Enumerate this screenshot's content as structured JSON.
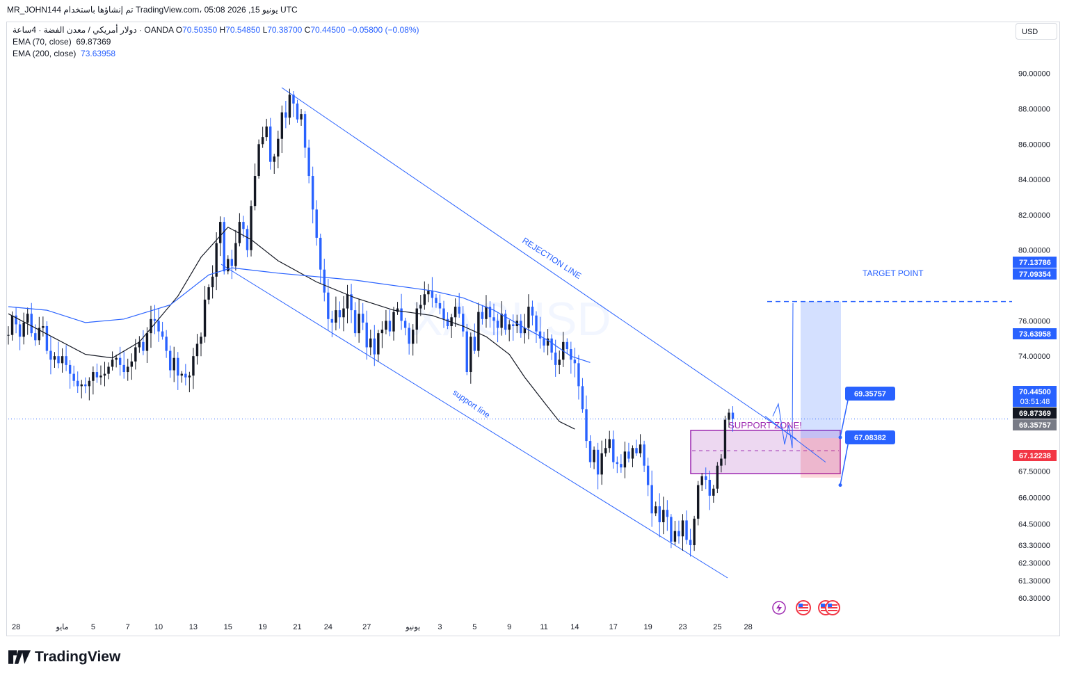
{
  "header": {
    "publish_line": "MR_JOHN144 تم إنشاؤها باستخدام TradingView.com، 05:08 2026 ,15 يونيو UTC",
    "symbol_line": "دولار أمريكي / معدن الفضة · 4ساعة · OANDA",
    "ohlc": {
      "o_label": "O",
      "o": "70.50350",
      "h_label": "H",
      "h": "70.54850",
      "l_label": "L",
      "l": "70.38700",
      "c_label": "C",
      "c": "70.44500",
      "change": "−0.05800 (−0.08%)"
    },
    "ema70": {
      "label": "EMA (70, close)",
      "value": "69.87369"
    },
    "ema200": {
      "label": "EMA (200, close)",
      "value": "73.63958"
    },
    "currency_button": "USD"
  },
  "footer": {
    "brand": "TradingView"
  },
  "colors": {
    "up": "#131722",
    "down": "#2962ff",
    "ema70": "#131722",
    "ema200": "#2962ff",
    "trend": "#2962ff",
    "support_zone": "#9c27b0",
    "target_zone": "#2962ff",
    "stop_zone": "#f23645"
  },
  "chart_data": {
    "type": "candlestick",
    "watermark": "XAGUSD",
    "y_range": [
      59.6,
      92.9
    ],
    "y_ticks": [
      {
        "value": 90.0,
        "label": "90.00000"
      },
      {
        "value": 88.0,
        "label": "88.00000"
      },
      {
        "value": 86.0,
        "label": "86.00000"
      },
      {
        "value": 84.0,
        "label": "84.00000"
      },
      {
        "value": 82.0,
        "label": "82.00000"
      },
      {
        "value": 80.0,
        "label": "80.00000"
      },
      {
        "value": 76.0,
        "label": "76.00000"
      },
      {
        "value": 74.0,
        "label": "74.00000"
      },
      {
        "value": 72.0,
        "label": "72.00000"
      },
      {
        "value": 67.5,
        "label": "67.50000"
      },
      {
        "value": 66.0,
        "label": "66.00000"
      },
      {
        "value": 64.5,
        "label": "64.50000"
      },
      {
        "value": 63.3,
        "label": "63.30000"
      },
      {
        "value": 62.3,
        "label": "62.30000"
      },
      {
        "value": 61.3,
        "label": "61.30000"
      },
      {
        "value": 60.3,
        "label": "60.30000"
      }
    ],
    "x_ticks": [
      {
        "i": 2,
        "label": "28"
      },
      {
        "i": 14,
        "label": "مايو"
      },
      {
        "i": 22,
        "label": "5"
      },
      {
        "i": 31,
        "label": "7"
      },
      {
        "i": 39,
        "label": "10"
      },
      {
        "i": 48,
        "label": "13"
      },
      {
        "i": 57,
        "label": "15"
      },
      {
        "i": 66,
        "label": "19"
      },
      {
        "i": 75,
        "label": "21"
      },
      {
        "i": 83,
        "label": "24"
      },
      {
        "i": 93,
        "label": "27"
      },
      {
        "i": 105,
        "label": "يونيو"
      },
      {
        "i": 112,
        "label": "3"
      },
      {
        "i": 121,
        "label": "5"
      },
      {
        "i": 130,
        "label": "9"
      },
      {
        "i": 139,
        "label": "11"
      },
      {
        "i": 147,
        "label": "14"
      },
      {
        "i": 157,
        "label": "17"
      },
      {
        "i": 166,
        "label": "19"
      },
      {
        "i": 175,
        "label": "23"
      },
      {
        "i": 184,
        "label": "25"
      },
      {
        "i": 192,
        "label": "28"
      }
    ],
    "candles_close": [
      75.2,
      76.3,
      75.8,
      75.1,
      75.9,
      76.4,
      75.3,
      74.9,
      75.6,
      75.7,
      74.3,
      73.8,
      74.0,
      73.6,
      74.0,
      73.5,
      73.0,
      72.6,
      72.3,
      72.4,
      72.3,
      72.6,
      73.1,
      72.8,
      72.9,
      73.0,
      73.4,
      73.8,
      73.9,
      73.5,
      73.1,
      73.4,
      73.7,
      74.5,
      74.8,
      74.3,
      75.3,
      76.1,
      76.0,
      75.4,
      75.1,
      74.3,
      73.2,
      73.9,
      72.9,
      73.0,
      72.8,
      72.9,
      74.0,
      74.7,
      75.1,
      77.2,
      77.9,
      78.5,
      80.4,
      81.6,
      78.8,
      79.5,
      79.1,
      80.4,
      81.6,
      81.2,
      80.0,
      82.5,
      84.2,
      86.0,
      86.4,
      87.0,
      85.0,
      85.3,
      86.3,
      87.8,
      87.5,
      88.8,
      88.3,
      87.4,
      87.7,
      85.8,
      84.2,
      82.3,
      80.7,
      78.9,
      77.6,
      76.1,
      75.9,
      76.6,
      76.2,
      76.7,
      77.5,
      76.6,
      75.3,
      76.4,
      75.9,
      74.5,
      75.0,
      74.1,
      75.3,
      75.5,
      76.0,
      75.4,
      76.5,
      76.7,
      76.0,
      75.6,
      74.7,
      75.5,
      76.7,
      76.9,
      77.5,
      77.7,
      77.3,
      77.0,
      76.7,
      76.1,
      75.7,
      76.2,
      76.8,
      76.4,
      75.4,
      73.1,
      75.1,
      74.3,
      76.5,
      76.1,
      76.8,
      76.2,
      76.0,
      75.6,
      76.4,
      75.5,
      75.8,
      75.7,
      76.0,
      75.3,
      75.6,
      76.8,
      76.3,
      75.4,
      75.0,
      74.6,
      75.0,
      74.2,
      73.5,
      73.8,
      74.8,
      74.4,
      73.8,
      73.6,
      72.3,
      71.0,
      69.2,
      68.0,
      68.7,
      67.3,
      68.5,
      68.8,
      69.3,
      68.0,
      67.9,
      67.7,
      68.6,
      68.2,
      68.8,
      68.5,
      69.0,
      67.8,
      66.7,
      65.1,
      65.5,
      64.6,
      65.3,
      64.9,
      63.5,
      64.1,
      63.8,
      64.7,
      63.6,
      63.3,
      64.8,
      66.7,
      67.2,
      67.0,
      66.1,
      66.5,
      67.8,
      68.2,
      70.4,
      70.8,
      70.45
    ],
    "ema70_path": [
      [
        0,
        76.4
      ],
      [
        20,
        74.1
      ],
      [
        27,
        73.9
      ],
      [
        34,
        74.8
      ],
      [
        44,
        77.4
      ],
      [
        50,
        79.6
      ],
      [
        57,
        81.3
      ],
      [
        63,
        80.6
      ],
      [
        70,
        79.4
      ],
      [
        80,
        78.2
      ],
      [
        90,
        77.3
      ],
      [
        100,
        76.6
      ],
      [
        110,
        76.3
      ],
      [
        118,
        75.7
      ],
      [
        124,
        75.1
      ],
      [
        130,
        74.1
      ],
      [
        134,
        72.8
      ],
      [
        139,
        71.4
      ],
      [
        143,
        70.3
      ],
      [
        147,
        69.87
      ]
    ],
    "ema200_path": [
      [
        0,
        76.8
      ],
      [
        10,
        76.6
      ],
      [
        20,
        75.9
      ],
      [
        30,
        76.1
      ],
      [
        42,
        76.9
      ],
      [
        52,
        78.6
      ],
      [
        58,
        79.0
      ],
      [
        70,
        78.7
      ],
      [
        90,
        78.3
      ],
      [
        110,
        77.7
      ],
      [
        118,
        77.3
      ],
      [
        126,
        76.6
      ],
      [
        134,
        75.6
      ],
      [
        140,
        74.9
      ],
      [
        146,
        74.0
      ],
      [
        151,
        73.64
      ]
    ],
    "annotations": {
      "rejection_line_label": "REJECTION LINE",
      "support_line_label": "support line",
      "support_zone_label": "SUPPORT ZONE!",
      "target_label": "TARGET POINT",
      "callouts": [
        "69.35757",
        "67.08382"
      ]
    },
    "price_labels": [
      {
        "value": 77.13786,
        "label": "77.13786",
        "kind": "blue"
      },
      {
        "value": 77.09354,
        "label": "77.09354",
        "kind": "blue"
      },
      {
        "value": 73.63958,
        "label": "73.63958",
        "kind": "blue"
      },
      {
        "value": 70.445,
        "label": "70.44500",
        "sub": "03:51:48",
        "kind": "blue"
      },
      {
        "value": 69.87369,
        "label": "69.87369",
        "kind": "black"
      },
      {
        "value": 69.35757,
        "label": "69.35757",
        "kind": "gray"
      },
      {
        "value": 67.12238,
        "label": "67.12238",
        "kind": "red"
      }
    ]
  }
}
